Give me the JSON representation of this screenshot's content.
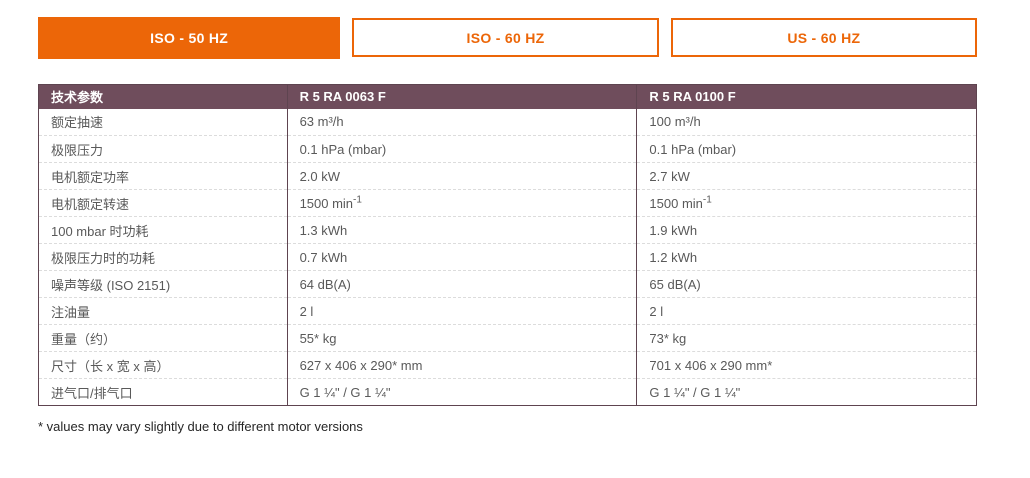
{
  "colors": {
    "accent_orange": "#EC6608",
    "header_plum": "#6F4D5C",
    "table_border": "#5E4450",
    "row_divider": "#DCDCDC",
    "row_text": "#595959",
    "footnote_text": "#262626"
  },
  "tabs": [
    {
      "id": "tab-iso-50hz",
      "label": "ISO - 50 HZ",
      "active": true
    },
    {
      "id": "tab-iso-60hz",
      "label": "ISO - 60 HZ",
      "active": false
    },
    {
      "id": "tab-us-60hz",
      "label": "US - 60 HZ",
      "active": false
    }
  ],
  "table": {
    "headers": [
      "技术参数",
      "R 5 RA 0063 F",
      "R 5 RA 0100 F"
    ],
    "rows": [
      {
        "label": "额定抽速",
        "values": [
          "63 m³/h",
          "100 m³/h"
        ]
      },
      {
        "label": "极限压力",
        "values": [
          "0.1 hPa (mbar)",
          "0.1 hPa (mbar)"
        ]
      },
      {
        "label": "电机额定功率",
        "values": [
          "2.0 kW",
          "2.7 kW"
        ]
      },
      {
        "label": "电机额定转速",
        "values": [
          "1500 min^-1",
          "1500 min^-1"
        ]
      },
      {
        "label": "100 mbar 时功耗",
        "values": [
          "1.3 kWh",
          "1.9 kWh"
        ]
      },
      {
        "label": "极限压力时的功耗",
        "values": [
          "0.7 kWh",
          "1.2 kWh"
        ]
      },
      {
        "label": "噪声等级 (ISO 2151)",
        "values": [
          "64 dB(A)",
          "65 dB(A)"
        ]
      },
      {
        "label": "注油量",
        "values": [
          "2 l",
          "2 l"
        ]
      },
      {
        "label": "重量（约）",
        "values": [
          "55* kg",
          "73* kg"
        ]
      },
      {
        "label": "尺寸（长 x 宽 x 高）",
        "values": [
          "627 x 406 x 290* mm",
          "701 x 406 x 290 mm*"
        ]
      },
      {
        "label": "进气口/排气口",
        "values": [
          "G 1 ¼\" / G 1 ¼\"",
          "G 1 ¼\" / G 1 ¼\""
        ]
      }
    ]
  },
  "footnote": "* values may vary slightly due to different motor versions"
}
